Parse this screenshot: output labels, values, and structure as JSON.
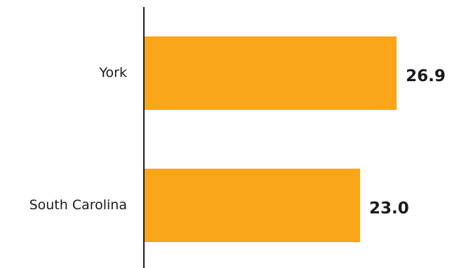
{
  "chart_data": {
    "type": "bar",
    "orientation": "horizontal",
    "categories": [
      "York",
      "South Carolina"
    ],
    "values": [
      26.9,
      23.0
    ],
    "value_labels": [
      "26.9",
      "23.0"
    ],
    "bar_color": "#FAA61A",
    "axis_color": "#1a1a1a",
    "xlim": [
      0,
      30
    ],
    "grid": false,
    "legend": "none"
  }
}
